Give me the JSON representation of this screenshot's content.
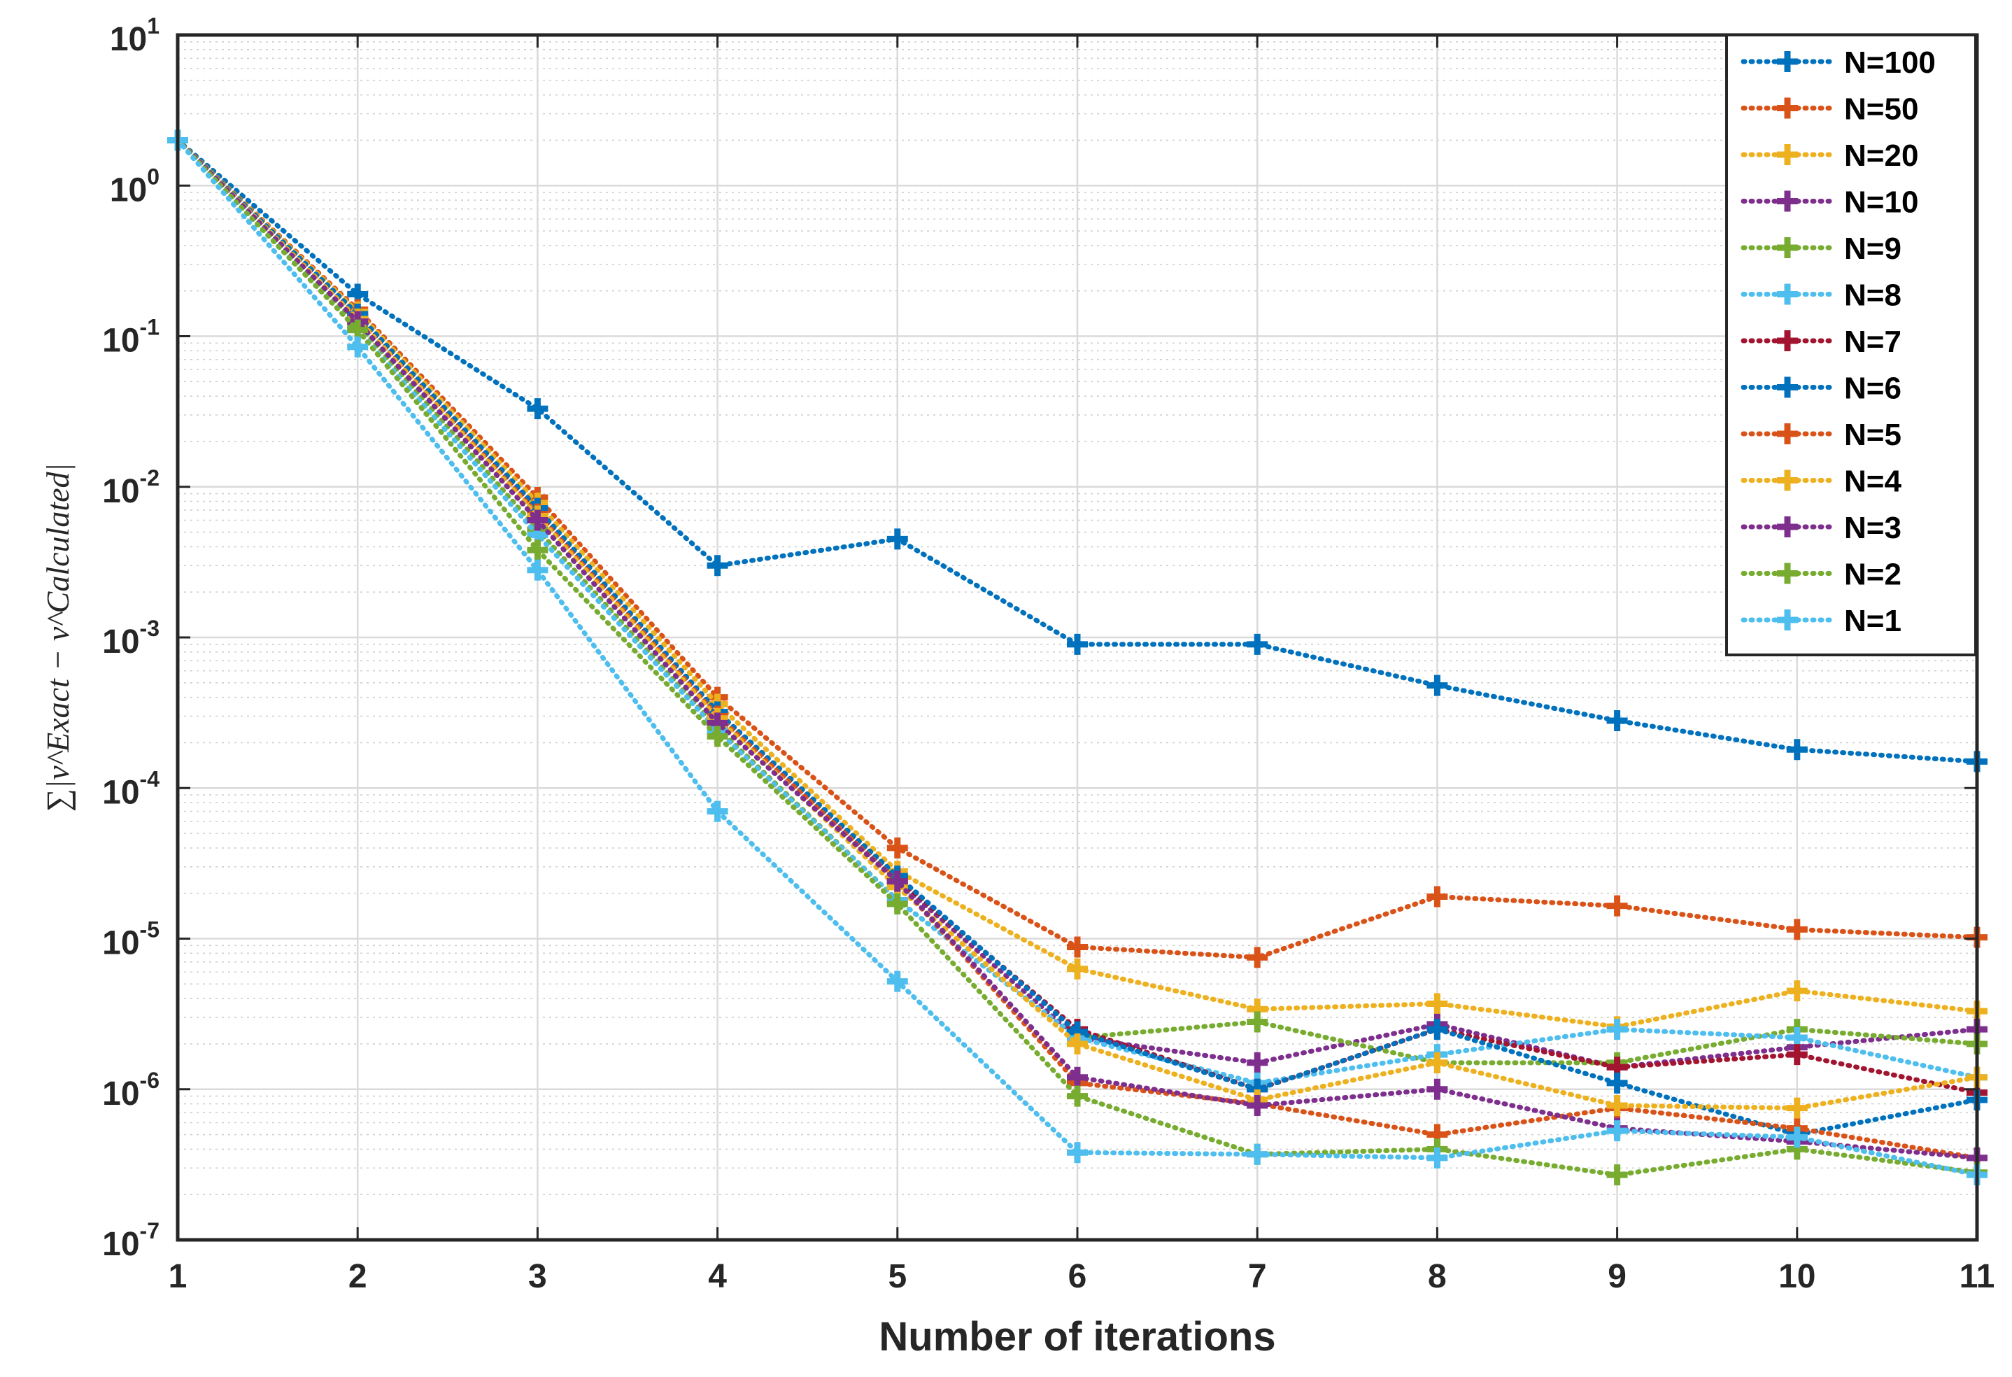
{
  "chart_data": {
    "type": "line",
    "title": "",
    "xlabel": "Number of iterations",
    "ylabel": "∑|ν^Exact − ν^Calculated|",
    "x": [
      1,
      2,
      3,
      4,
      5,
      6,
      7,
      8,
      9,
      10,
      11
    ],
    "xlim": [
      1,
      11
    ],
    "ylim": [
      1e-07,
      10
    ],
    "yscale": "log",
    "grid": true,
    "minor_grid": true,
    "legend_position": "top-right",
    "x_tick_labels": [
      "1",
      "2",
      "3",
      "4",
      "5",
      "6",
      "7",
      "8",
      "9",
      "10",
      "11"
    ],
    "y_ticks": [
      {
        "base": "10",
        "exp": "1"
      },
      {
        "base": "10",
        "exp": "0"
      },
      {
        "base": "10",
        "exp": "-1"
      },
      {
        "base": "10",
        "exp": "-2"
      },
      {
        "base": "10",
        "exp": "-3"
      },
      {
        "base": "10",
        "exp": "-4"
      },
      {
        "base": "10",
        "exp": "-5"
      },
      {
        "base": "10",
        "exp": "-6"
      },
      {
        "base": "10",
        "exp": "-7"
      }
    ],
    "series": [
      {
        "name": "N=100",
        "color": "#0072BD",
        "values": [
          2.0,
          0.19,
          0.033,
          0.003,
          0.0045,
          0.0009,
          0.0009,
          0.00048,
          0.00028,
          0.00018,
          0.00015
        ]
      },
      {
        "name": "N=50",
        "color": "#D95319",
        "values": [
          2.0,
          0.15,
          0.0085,
          0.0004,
          4e-05,
          8.8e-06,
          7.5e-06,
          1.9e-05,
          1.65e-05,
          1.15e-05,
          1.02e-05
        ]
      },
      {
        "name": "N=20",
        "color": "#EDB120",
        "values": [
          2.0,
          0.145,
          0.0078,
          0.00036,
          2.8e-05,
          6.3e-06,
          3.4e-06,
          3.7e-06,
          2.6e-06,
          4.5e-06,
          3.3e-06
        ]
      },
      {
        "name": "N=10",
        "color": "#7E2F8E",
        "values": [
          2.0,
          0.135,
          0.0068,
          0.0003,
          2.4e-05,
          2.2e-06,
          1.5e-06,
          2.7e-06,
          1.4e-06,
          1.9e-06,
          2.5e-06
        ]
      },
      {
        "name": "N=9",
        "color": "#77AC30",
        "values": [
          2.0,
          0.12,
          0.0052,
          0.00025,
          1.8e-05,
          2.2e-06,
          2.8e-06,
          1.5e-06,
          1.5e-06,
          2.5e-06,
          2e-06
        ]
      },
      {
        "name": "N=8",
        "color": "#4DBEEE",
        "values": [
          2.0,
          0.11,
          0.0048,
          0.00024,
          1.8e-05,
          2.2e-06,
          1.1e-06,
          1.7e-06,
          2.5e-06,
          2.2e-06,
          1.2e-06
        ]
      },
      {
        "name": "N=7",
        "color": "#A2142F",
        "values": [
          2.0,
          0.135,
          0.007,
          0.00031,
          2.5e-05,
          2.5e-06,
          1e-06,
          2.5e-06,
          1.4e-06,
          1.7e-06,
          9.5e-07
        ]
      },
      {
        "name": "N=6",
        "color": "#0072BD",
        "values": [
          2.0,
          0.14,
          0.0072,
          0.00032,
          2.6e-05,
          2.4e-06,
          1e-06,
          2.5e-06,
          1.1e-06,
          5e-07,
          8.5e-07
        ]
      },
      {
        "name": "N=5",
        "color": "#D95319",
        "values": [
          2.0,
          0.13,
          0.0066,
          0.0003,
          2.4e-05,
          1.1e-06,
          8e-07,
          5e-07,
          7.5e-07,
          5.5e-07,
          3.5e-07
        ]
      },
      {
        "name": "N=4",
        "color": "#EDB120",
        "values": [
          2.0,
          0.13,
          0.0064,
          0.00029,
          2.2e-05,
          2e-06,
          8.5e-07,
          1.5e-06,
          7.8e-07,
          7.5e-07,
          1.2e-06
        ]
      },
      {
        "name": "N=3",
        "color": "#7E2F8E",
        "values": [
          2.0,
          0.125,
          0.006,
          0.00027,
          2.4e-05,
          1.2e-06,
          7.8e-07,
          1e-06,
          5.5e-07,
          4.5e-07,
          3.5e-07
        ]
      },
      {
        "name": "N=2",
        "color": "#77AC30",
        "values": [
          2.0,
          0.11,
          0.0038,
          0.00022,
          1.7e-05,
          9e-07,
          3.7e-07,
          4e-07,
          2.7e-07,
          4e-07,
          2.8e-07
        ]
      },
      {
        "name": "N=1",
        "color": "#4DBEEE",
        "values": [
          2.0,
          0.085,
          0.0028,
          7e-05,
          5.2e-06,
          3.8e-07,
          3.7e-07,
          3.5e-07,
          5.3e-07,
          4.8e-07,
          2.7e-07
        ]
      }
    ]
  }
}
